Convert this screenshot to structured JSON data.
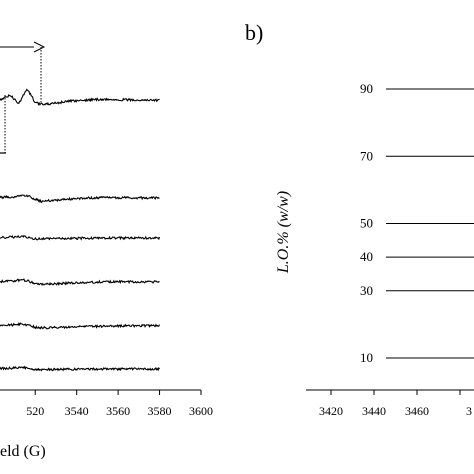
{
  "chart_data": [
    {
      "type": "line",
      "panel_label": "",
      "xlabel": "eld (G)",
      "ylabel": "",
      "x_ticks": [
        "520",
        "3540",
        "3560",
        "3580",
        "3600"
      ],
      "xlim": [
        3503,
        3600
      ],
      "grid": false,
      "legend": "none",
      "series": [
        {
          "offset_level": 6,
          "points": [
            [
              3503,
              0
            ],
            [
              3508,
              0.4
            ],
            [
              3512,
              -0.3
            ],
            [
              3516,
              0.9
            ],
            [
              3518,
              0.4
            ],
            [
              3520,
              -0.2
            ],
            [
              3524,
              -0.4
            ],
            [
              3528,
              -0.3
            ],
            [
              3534,
              -0.15
            ],
            [
              3540,
              -0.05
            ],
            [
              3550,
              0.05
            ],
            [
              3560,
              0.03
            ],
            [
              3570,
              0
            ],
            [
              3580,
              -0.02
            ]
          ]
        },
        {
          "offset_level": 5,
          "points": [
            [
              3503,
              0.05
            ],
            [
              3510,
              0.1
            ],
            [
              3514,
              0.25
            ],
            [
              3517,
              0.15
            ],
            [
              3520,
              -0.1
            ],
            [
              3523,
              -0.3
            ],
            [
              3527,
              -0.22
            ],
            [
              3535,
              -0.1
            ],
            [
              3545,
              0
            ],
            [
              3555,
              0.05
            ],
            [
              3565,
              0.02
            ],
            [
              3580,
              0
            ]
          ]
        },
        {
          "offset_level": 4,
          "points": [
            [
              3503,
              0.05
            ],
            [
              3510,
              0.08
            ],
            [
              3514,
              0.18
            ],
            [
              3517,
              0.05
            ],
            [
              3520,
              -0.06
            ],
            [
              3525,
              -0.08
            ],
            [
              3535,
              -0.04
            ],
            [
              3550,
              0
            ],
            [
              3565,
              0
            ],
            [
              3580,
              0
            ]
          ]
        },
        {
          "offset_level": 3,
          "points": [
            [
              3503,
              0.05
            ],
            [
              3510,
              0.1
            ],
            [
              3514,
              0.2
            ],
            [
              3517,
              0.05
            ],
            [
              3520,
              -0.12
            ],
            [
              3525,
              -0.18
            ],
            [
              3535,
              -0.1
            ],
            [
              3550,
              0
            ],
            [
              3565,
              0.03
            ],
            [
              3580,
              0
            ]
          ]
        },
        {
          "offset_level": 2,
          "points": [
            [
              3503,
              0.05
            ],
            [
              3510,
              0.1
            ],
            [
              3514,
              0.18
            ],
            [
              3517,
              0.04
            ],
            [
              3520,
              -0.12
            ],
            [
              3525,
              -0.14
            ],
            [
              3535,
              -0.08
            ],
            [
              3550,
              -0.02
            ],
            [
              3565,
              0.02
            ],
            [
              3580,
              0.03
            ]
          ]
        },
        {
          "offset_level": 1,
          "points": [
            [
              3503,
              0.05
            ],
            [
              3510,
              0.08
            ],
            [
              3514,
              0.14
            ],
            [
              3517,
              0.02
            ],
            [
              3520,
              -0.06
            ],
            [
              3525,
              -0.05
            ],
            [
              3540,
              -0.02
            ],
            [
              3560,
              0
            ],
            [
              3580,
              0
            ]
          ]
        }
      ],
      "annotations": {
        "bracket": true,
        "arrow": "right"
      }
    },
    {
      "type": "line",
      "panel_label": "b)",
      "xlabel": "",
      "ylabel": "L.O.% (w/w)",
      "x_ticks": [
        "3420",
        "3440",
        "3460",
        "3"
      ],
      "xlim": [
        3420,
        3480
      ],
      "grid": false,
      "legend": "none",
      "lo_levels": [
        "90",
        "70",
        "50",
        "40",
        "30",
        "10"
      ],
      "series": [
        {
          "lo": 90,
          "x": [
            3440,
            3480
          ]
        },
        {
          "lo": 70,
          "x": [
            3440,
            3480
          ]
        },
        {
          "lo": 50,
          "x": [
            3440,
            3480
          ]
        },
        {
          "lo": 40,
          "x": [
            3440,
            3480
          ]
        },
        {
          "lo": 30,
          "x": [
            3440,
            3480
          ]
        },
        {
          "lo": 10,
          "x": [
            3440,
            3480
          ]
        }
      ]
    }
  ]
}
